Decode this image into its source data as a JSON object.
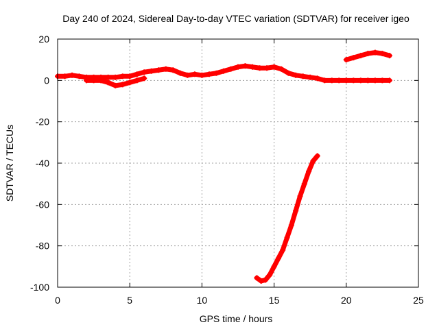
{
  "chart_data": {
    "type": "scatter",
    "title": "Day 240 of 2024, Sidereal Day-to-day VTEC variation (SDTVAR) for receiver igeo",
    "xlabel": "GPS time / hours",
    "ylabel": "SDTVAR / TECUs",
    "xlim": [
      0,
      25
    ],
    "ylim": [
      -100,
      20
    ],
    "xticks": [
      0,
      5,
      10,
      15,
      20,
      25
    ],
    "yticks": [
      20,
      0,
      -20,
      -40,
      -60,
      -80,
      -100
    ],
    "grid": true,
    "point_color": "#ff0000",
    "series": [
      {
        "name": "main",
        "x": [
          0,
          0.5,
          1,
          1.5,
          2,
          2.5,
          3,
          3.5,
          4,
          4.5,
          5,
          5.5,
          6,
          6.5,
          7,
          7.5,
          8,
          8.5,
          9,
          9.5,
          10,
          10.5,
          11,
          11.5,
          12,
          12.5,
          13,
          13.5,
          14,
          14.5,
          15,
          15.5,
          16,
          16.5,
          17,
          17.5,
          18,
          18.5,
          19,
          19.5,
          20,
          20.5,
          21,
          21.5,
          22,
          22.5,
          23
        ],
        "values": [
          2,
          2,
          2.5,
          2,
          1.5,
          1.5,
          1.5,
          1.5,
          1.5,
          2,
          2,
          3,
          4,
          4.5,
          5,
          5.5,
          5,
          3.5,
          2.5,
          3,
          2.5,
          3,
          3.5,
          4.5,
          5.5,
          6.5,
          7,
          6.5,
          6,
          6,
          6.5,
          5.5,
          3.5,
          2.5,
          2,
          1.5,
          1,
          0,
          0,
          0,
          0,
          0,
          0,
          0,
          0,
          0,
          0
        ]
      },
      {
        "name": "lower-branch",
        "x": [
          2,
          2.5,
          3,
          3.5,
          4,
          4.5,
          5,
          5.5,
          6
        ],
        "values": [
          0,
          0,
          0,
          -1,
          -2.5,
          -2,
          -1,
          0,
          1
        ]
      },
      {
        "name": "arc-20h",
        "x": [
          20,
          20.5,
          21,
          21.5,
          22,
          22.5,
          23
        ],
        "values": [
          10,
          11,
          12,
          13,
          13.5,
          13,
          12
        ]
      },
      {
        "name": "dip-14-18h",
        "x": [
          13.8,
          14.1,
          14.4,
          14.7,
          15,
          15.3,
          15.6,
          15.9,
          16.2,
          16.5,
          16.8,
          17.1,
          17.4,
          17.7,
          18
        ],
        "values": [
          -95.5,
          -97,
          -96.5,
          -94,
          -90,
          -86,
          -82,
          -76,
          -70,
          -63,
          -56,
          -50,
          -44,
          -39,
          -36.5
        ]
      }
    ]
  }
}
